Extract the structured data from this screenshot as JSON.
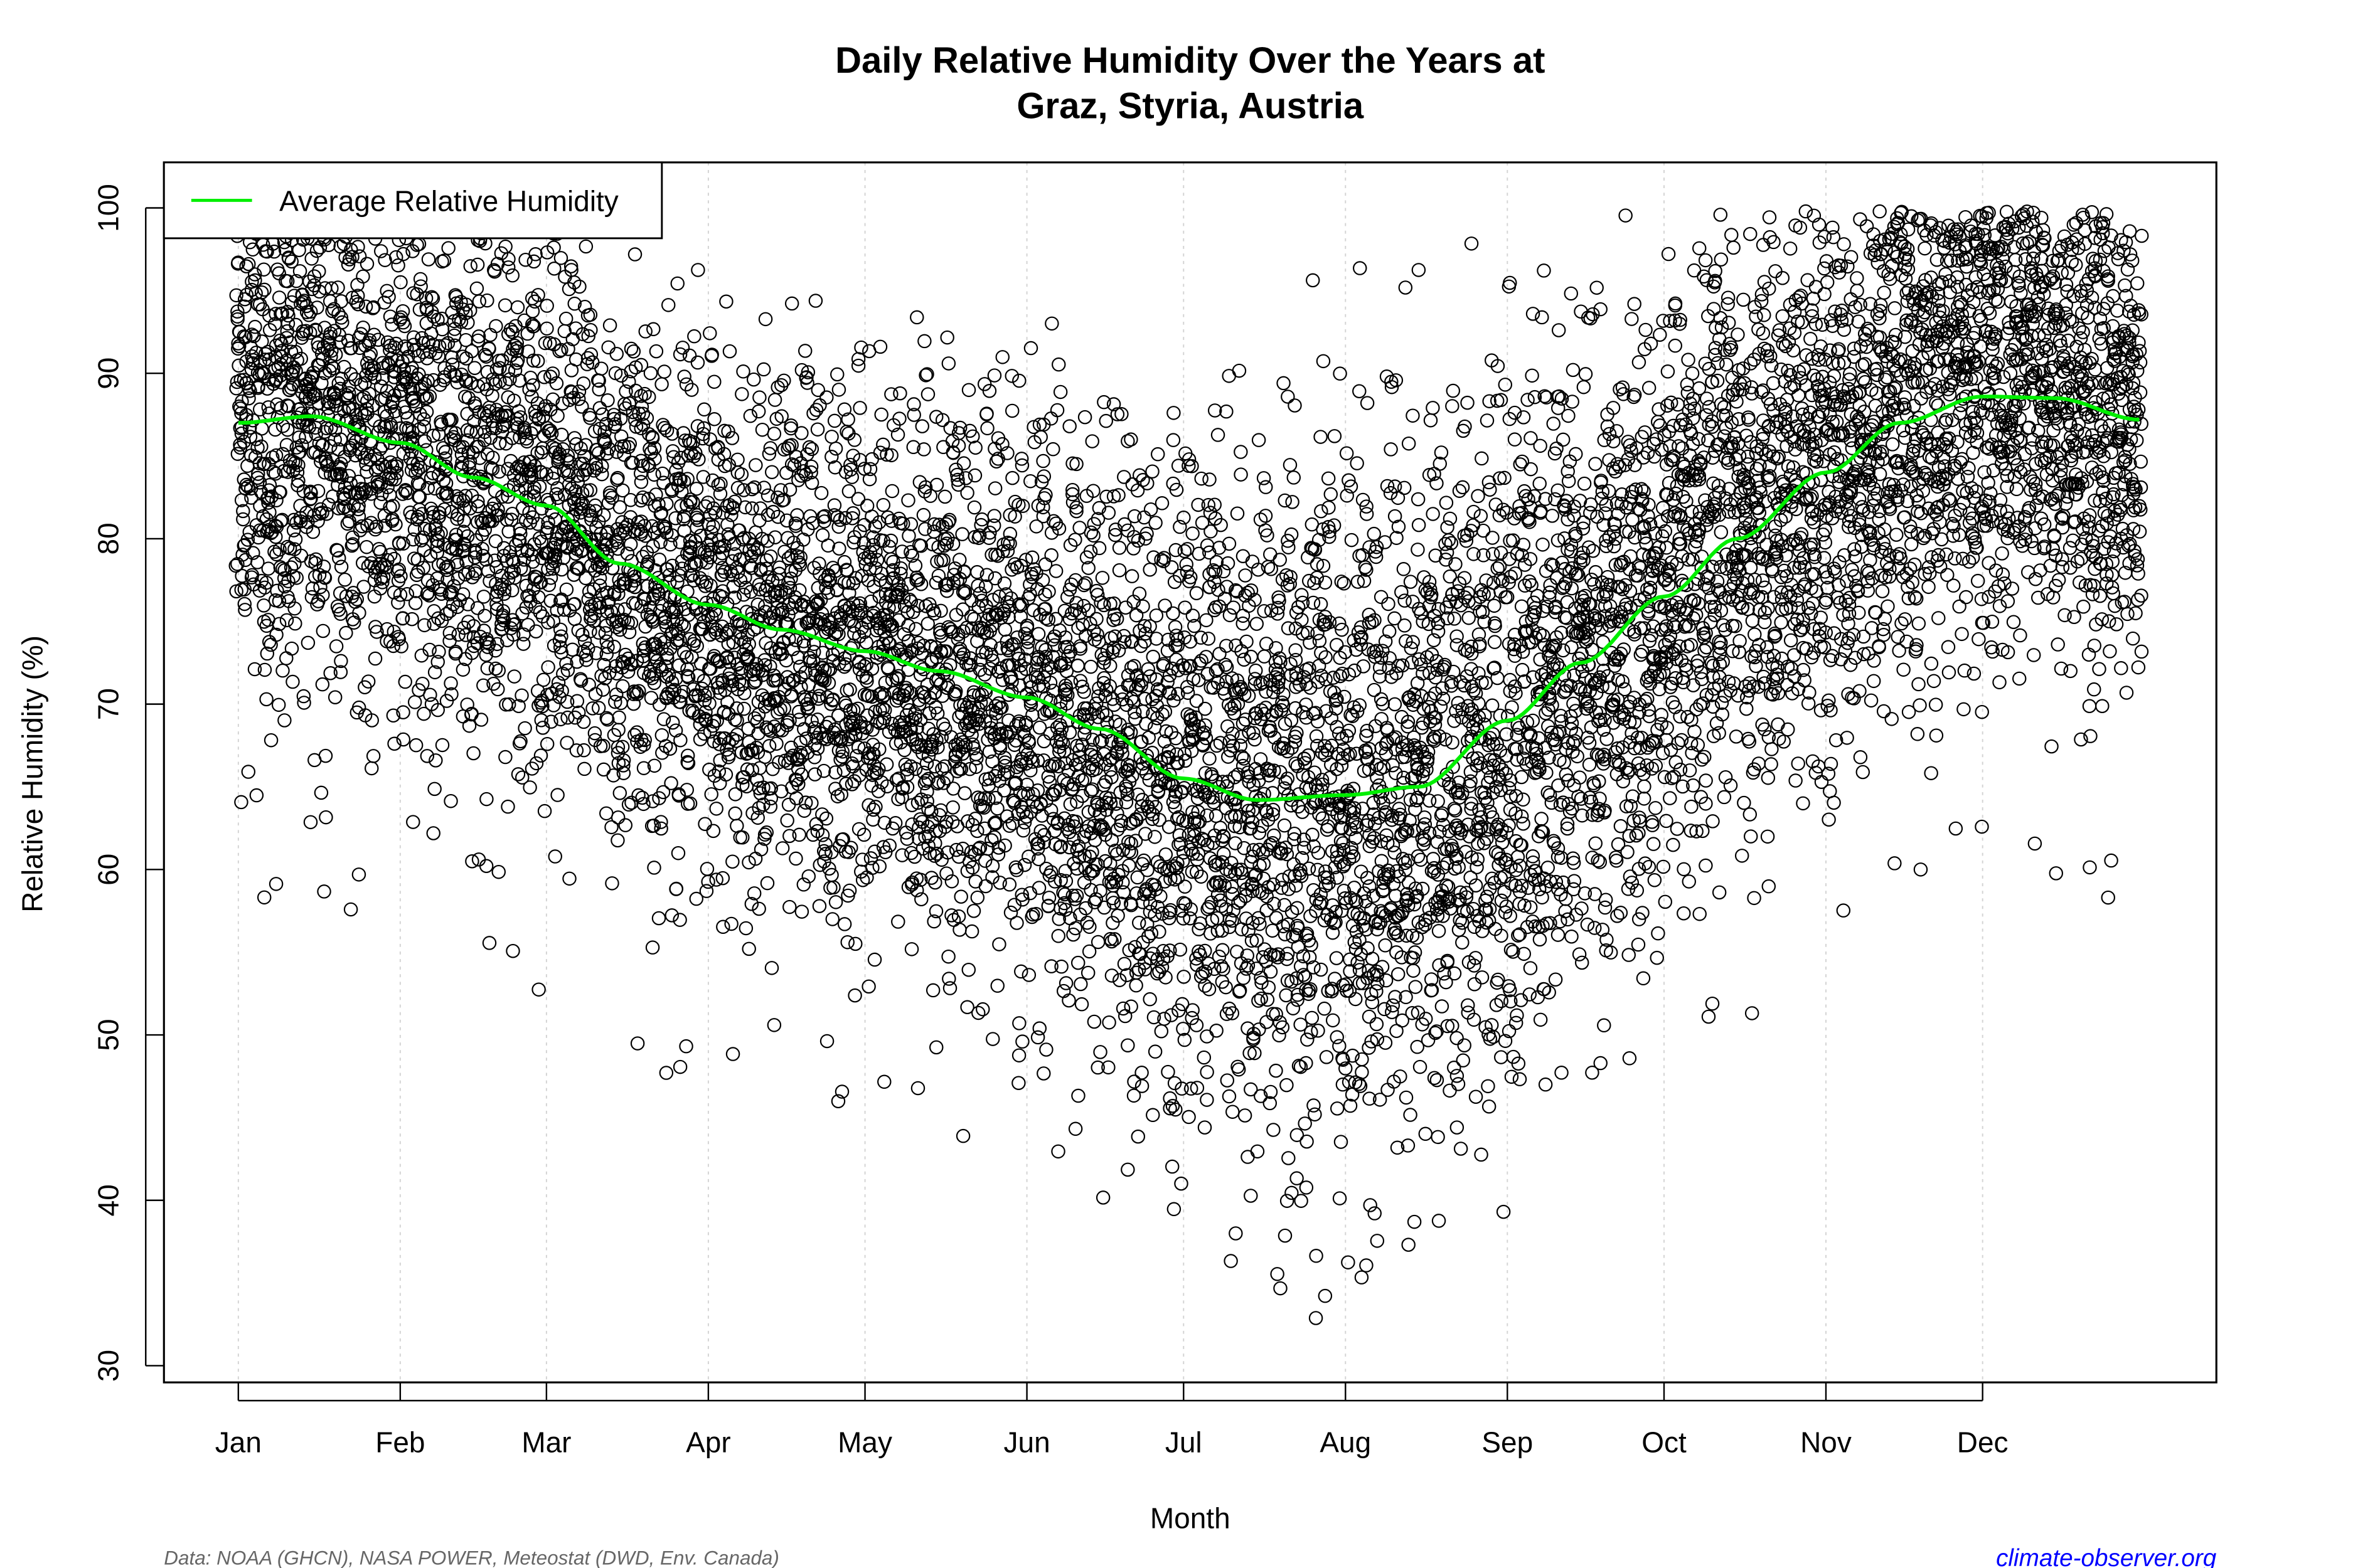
{
  "chart_data": {
    "type": "scatter",
    "title": [
      "Daily Relative Humidity Over the Years at",
      "Graz, Styria, Austria"
    ],
    "xlabel": "Month",
    "ylabel": "Relative Humidity  (%)",
    "x_ticks": [
      "Jan",
      "Feb",
      "Mar",
      "Apr",
      "May",
      "Jun",
      "Jul",
      "Aug",
      "Sep",
      "Oct",
      "Nov",
      "Dec"
    ],
    "x_tick_days": [
      1,
      32,
      60,
      91,
      121,
      152,
      182,
      213,
      244,
      274,
      305,
      335
    ],
    "x_range_days": [
      1,
      366
    ],
    "y_ticks": [
      30,
      40,
      50,
      60,
      70,
      80,
      90,
      100
    ],
    "ylim": [
      30,
      100
    ],
    "grid": "vertical dotted at month ticks",
    "point_style": "open black circle",
    "legend": {
      "position": "top-left",
      "entries": [
        {
          "label": "Average Relative Humidity",
          "color": "#00ee00"
        }
      ]
    },
    "average_series": {
      "name": "Average Relative Humidity",
      "color": "#00ee00",
      "day": [
        1,
        15,
        32,
        46,
        60,
        74,
        91,
        105,
        121,
        135,
        152,
        166,
        182,
        196,
        213,
        227,
        244,
        258,
        274,
        288,
        305,
        319,
        335,
        349,
        365
      ],
      "value": [
        87.0,
        87.4,
        85.8,
        83.7,
        82.0,
        78.5,
        76.0,
        74.5,
        73.2,
        72.0,
        70.4,
        68.5,
        65.5,
        64.2,
        64.5,
        65.0,
        69.0,
        72.5,
        76.5,
        80.0,
        84.0,
        87.0,
        88.6,
        88.5,
        87.2
      ]
    }
  },
  "footer": {
    "source": "Data: NOAA (GHCN), NASA POWER, Meteostat (DWD, Env. Canada)",
    "site": "climate-observer.org"
  }
}
